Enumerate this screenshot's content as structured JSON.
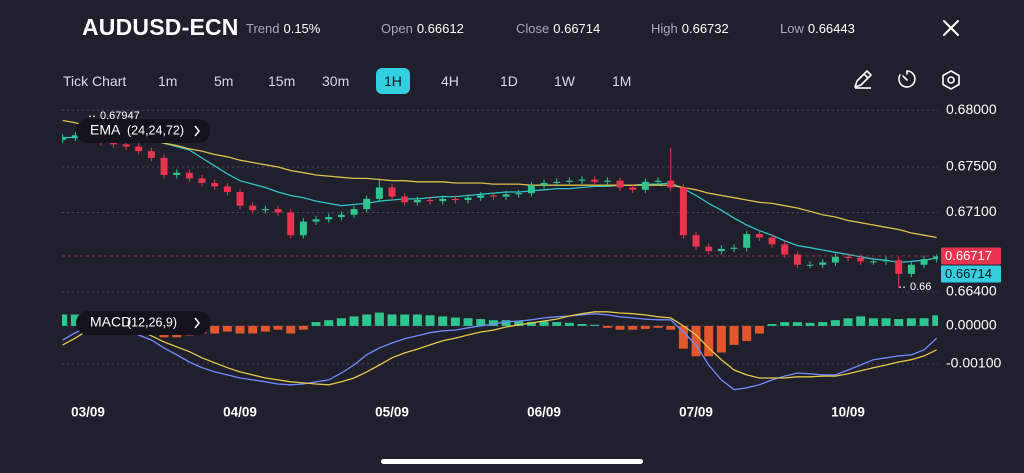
{
  "header": {
    "symbol": "AUDUSD-ECN",
    "stats": [
      {
        "label": "Trend",
        "value": "0.15%"
      },
      {
        "label": "Open",
        "value": 0.66612
      },
      {
        "label": "Close",
        "value": 0.66714
      },
      {
        "label": "High",
        "value": 0.66732
      },
      {
        "label": "Low",
        "value": 0.66443
      }
    ]
  },
  "toolbar": {
    "items": [
      "Tick Chart",
      "1m",
      "5m",
      "15m",
      "30m",
      "1H",
      "4H",
      "1D",
      "1W",
      "1M"
    ],
    "active_index": 5
  },
  "chart_data": [
    {
      "type": "candlestick",
      "legend_label": "EMA",
      "legend_params": "(24,24,72)",
      "ylim": [
        0.6633,
        0.6809
      ],
      "yticks": [
        {
          "value": 0.68,
          "label": "0.68000"
        },
        {
          "value": 0.675,
          "label": "0.67500"
        },
        {
          "value": 0.671,
          "label": "0.67100"
        },
        {
          "value": 0.664,
          "label": "0.66400"
        }
      ],
      "grid": true,
      "up_color": "#2fc58f",
      "down_color": "#e8344e",
      "open": [
        0.6774,
        0.6776,
        0.6778,
        0.6775,
        0.6772,
        0.677,
        0.6768,
        0.6764,
        0.6758,
        0.6743,
        0.6745,
        0.674,
        0.6736,
        0.6733,
        0.6728,
        0.6716,
        0.6712,
        0.6713,
        0.671,
        0.669,
        0.6702,
        0.6704,
        0.6706,
        0.6708,
        0.6713,
        0.6722,
        0.6732,
        0.6724,
        0.6719,
        0.6721,
        0.672,
        0.6722,
        0.6721,
        0.6723,
        0.6725,
        0.6724,
        0.6726,
        0.6727,
        0.6734,
        0.6736,
        0.6737,
        0.6738,
        0.6739,
        0.6737,
        0.6738,
        0.6732,
        0.673,
        0.6737,
        0.6738,
        0.6732,
        0.669,
        0.668,
        0.6676,
        0.6678,
        0.6679,
        0.6691,
        0.6688,
        0.6682,
        0.6673,
        0.6664,
        0.6664,
        0.6666,
        0.6671,
        0.667,
        0.6667,
        0.6667,
        0.6668,
        0.6656,
        0.6664,
        0.6669
      ],
      "high": [
        0.6779,
        0.6781,
        0.6781,
        0.6778,
        0.6775,
        0.6773,
        0.6771,
        0.6767,
        0.6761,
        0.6748,
        0.6748,
        0.6743,
        0.6739,
        0.6736,
        0.6731,
        0.6719,
        0.6716,
        0.6716,
        0.6713,
        0.6705,
        0.6707,
        0.6709,
        0.6711,
        0.6716,
        0.6725,
        0.674,
        0.6735,
        0.6727,
        0.6724,
        0.6724,
        0.6725,
        0.6725,
        0.6726,
        0.6728,
        0.6728,
        0.6729,
        0.673,
        0.6737,
        0.6739,
        0.674,
        0.6741,
        0.6742,
        0.6742,
        0.6741,
        0.6741,
        0.6735,
        0.674,
        0.6741,
        0.6767,
        0.6735,
        0.6693,
        0.6683,
        0.6681,
        0.6682,
        0.6694,
        0.6694,
        0.6691,
        0.6685,
        0.6676,
        0.6667,
        0.6669,
        0.6674,
        0.6674,
        0.6673,
        0.667,
        0.6671,
        0.6671,
        0.6667,
        0.6672,
        0.66732
      ],
      "low": [
        0.6771,
        0.6773,
        0.6772,
        0.6769,
        0.6767,
        0.6765,
        0.6761,
        0.6755,
        0.674,
        0.674,
        0.6737,
        0.6733,
        0.673,
        0.6725,
        0.6713,
        0.6709,
        0.6709,
        0.6707,
        0.6687,
        0.6687,
        0.6699,
        0.6701,
        0.6703,
        0.6705,
        0.671,
        0.6719,
        0.6721,
        0.6716,
        0.6716,
        0.6717,
        0.6717,
        0.6718,
        0.6718,
        0.672,
        0.6721,
        0.6721,
        0.6723,
        0.6724,
        0.6731,
        0.6733,
        0.6734,
        0.6735,
        0.6734,
        0.6734,
        0.6729,
        0.6727,
        0.6727,
        0.6734,
        0.6729,
        0.6687,
        0.6677,
        0.6673,
        0.6673,
        0.6675,
        0.6676,
        0.6685,
        0.6679,
        0.667,
        0.6661,
        0.6661,
        0.6661,
        0.6663,
        0.6667,
        0.6664,
        0.6664,
        0.6664,
        0.6644,
        0.6653,
        0.6661,
        0.6666
      ],
      "close": [
        0.6776,
        0.6778,
        0.6775,
        0.6772,
        0.677,
        0.6768,
        0.6764,
        0.6758,
        0.6743,
        0.6745,
        0.674,
        0.6736,
        0.6733,
        0.6728,
        0.6716,
        0.6712,
        0.6713,
        0.671,
        0.669,
        0.6702,
        0.6704,
        0.6706,
        0.6708,
        0.6713,
        0.6722,
        0.6732,
        0.6724,
        0.6719,
        0.6721,
        0.672,
        0.6722,
        0.6721,
        0.6723,
        0.6725,
        0.6724,
        0.6726,
        0.6727,
        0.6734,
        0.6736,
        0.6737,
        0.6738,
        0.6739,
        0.6737,
        0.6738,
        0.6732,
        0.673,
        0.6737,
        0.6738,
        0.6732,
        0.669,
        0.668,
        0.6676,
        0.6678,
        0.6679,
        0.6691,
        0.6688,
        0.6682,
        0.6673,
        0.6664,
        0.6664,
        0.6666,
        0.6671,
        0.667,
        0.6667,
        0.6667,
        0.6668,
        0.6656,
        0.6664,
        0.6669,
        0.66714
      ],
      "lines": [
        {
          "color": "#2ec3c8",
          "values": [
            0.6776,
            0.6776,
            0.6776,
            0.6775,
            0.6775,
            0.6775,
            0.6774,
            0.6774,
            0.6771,
            0.6768,
            0.6765,
            0.6758,
            0.6751,
            0.6744,
            0.6738,
            0.6735,
            0.6732,
            0.6728,
            0.6725,
            0.6723,
            0.672,
            0.6718,
            0.6716,
            0.6717,
            0.6718,
            0.672,
            0.6721,
            0.6722,
            0.6722,
            0.6723,
            0.6724,
            0.6724,
            0.6725,
            0.6726,
            0.6727,
            0.6728,
            0.6728,
            0.6729,
            0.673,
            0.6731,
            0.6731,
            0.6732,
            0.6733,
            0.6733,
            0.6734,
            0.6734,
            0.6735,
            0.6735,
            0.6736,
            0.6731,
            0.6725,
            0.6718,
            0.6712,
            0.6705,
            0.6699,
            0.6694,
            0.669,
            0.6685,
            0.6681,
            0.6679,
            0.6677,
            0.6675,
            0.6673,
            0.6671,
            0.6669,
            0.6668,
            0.6666,
            0.6667,
            0.6668,
            0.667
          ]
        },
        {
          "color": "#dcc04a",
          "values": [
            0.6791,
            0.6789,
            0.6786,
            0.6784,
            0.6781,
            0.6779,
            0.6776,
            0.6774,
            0.6771,
            0.6769,
            0.6766,
            0.6764,
            0.6761,
            0.6759,
            0.6756,
            0.6754,
            0.6752,
            0.675,
            0.6747,
            0.6745,
            0.6743,
            0.6742,
            0.6741,
            0.674,
            0.674,
            0.6739,
            0.6738,
            0.6738,
            0.6737,
            0.6737,
            0.6737,
            0.6736,
            0.6736,
            0.6736,
            0.6735,
            0.6735,
            0.6735,
            0.6734,
            0.6734,
            0.6734,
            0.6734,
            0.6734,
            0.6734,
            0.6734,
            0.6734,
            0.6734,
            0.6734,
            0.6734,
            0.6734,
            0.6732,
            0.673,
            0.6727,
            0.6725,
            0.6723,
            0.6721,
            0.6719,
            0.6718,
            0.6716,
            0.6714,
            0.6711,
            0.6708,
            0.6706,
            0.6703,
            0.6701,
            0.6699,
            0.6697,
            0.6695,
            0.6692,
            0.669,
            0.6688
          ]
        }
      ],
      "max_marker": {
        "value": 0.67947,
        "label": "0.67947"
      },
      "min_marker": {
        "value": 0.66443,
        "label": "0.66"
      },
      "price_labels": [
        {
          "value": 0.66717,
          "label": "0.66717",
          "color": "#e8344e"
        },
        {
          "value": 0.66714,
          "label": "0.66714",
          "color": "#33cfe0"
        }
      ]
    },
    {
      "type": "macd",
      "legend_label": "MACD",
      "legend_params": "(12,26,9)",
      "categories": [
        null,
        null,
        "03/09",
        null,
        null,
        null,
        null,
        null,
        null,
        null,
        null,
        null,
        null,
        null,
        "04/09",
        null,
        null,
        null,
        null,
        null,
        null,
        null,
        null,
        null,
        null,
        null,
        "05/09",
        null,
        null,
        null,
        null,
        null,
        null,
        null,
        null,
        null,
        null,
        null,
        "06/09",
        null,
        null,
        null,
        null,
        null,
        null,
        null,
        null,
        null,
        null,
        null,
        "07/09",
        null,
        null,
        null,
        null,
        null,
        null,
        null,
        null,
        null,
        null,
        null,
        "10/09",
        null,
        null,
        null,
        null,
        null,
        null,
        null
      ],
      "ylim": [
        -0.00195,
        0.00055
      ],
      "yticks": [
        {
          "value": 0,
          "label": "0.00000"
        },
        {
          "value": -0.001,
          "label": "-0.00100"
        }
      ],
      "grid": true,
      "histogram": {
        "up_color": "#2fc58f",
        "down_color": "#e2572b",
        "values": [
          0.0003,
          0.0003,
          0.0002,
          0.0002,
          0.0001,
          5e-05,
          -5e-05,
          -0.0001,
          -0.0003,
          -0.0003,
          -0.00025,
          -0.0002,
          -0.0002,
          -0.00015,
          -0.0002,
          -0.0002,
          -0.00015,
          -0.0001,
          -0.0002,
          -0.0001,
          0.0001,
          0.00015,
          0.0002,
          0.00025,
          0.0003,
          0.00035,
          0.0003,
          0.0003,
          0.0003,
          0.00028,
          0.00025,
          0.00022,
          0.0002,
          0.00018,
          0.00015,
          0.00015,
          0.00012,
          0.0001,
          0.00012,
          0.0001,
          8e-05,
          5e-05,
          3e-05,
          -5e-05,
          -0.0001,
          -0.0001,
          -8e-05,
          -5e-05,
          -0.0001,
          -0.0006,
          -0.0008,
          -0.0008,
          -0.0007,
          -0.0005,
          -0.0004,
          -0.0002,
          5e-05,
          0.0001,
          0.0001,
          8e-05,
          0.0001,
          0.00015,
          0.0002,
          0.00025,
          0.0002,
          0.0002,
          0.00018,
          0.0002,
          0.0002,
          0.00028
        ]
      },
      "lines": [
        {
          "color": "#6f8cff",
          "values": [
            -0.00037,
            -0.00018,
            -3e-05,
            3e-05,
            0,
            -0.0001,
            -0.00024,
            -0.00037,
            -0.00058,
            -0.00076,
            -0.00095,
            -0.0011,
            -0.00121,
            -0.00129,
            -0.00137,
            -0.00142,
            -0.00147,
            -0.00153,
            -0.00155,
            -0.00153,
            -0.00147,
            -0.00142,
            -0.00124,
            -0.00103,
            -0.00076,
            -0.00058,
            -0.00045,
            -0.00034,
            -0.00026,
            -0.00018,
            -0.00013,
            -0.00011,
            -5e-05,
            0,
            5e-05,
            0.00011,
            0.00013,
            0.00016,
            0.00021,
            0.00024,
            0.00026,
            0.00029,
            0.00032,
            0.00029,
            0.00024,
            0.00021,
            0.00018,
            0.00016,
            0.00016,
            -0.00016,
            -0.0005,
            -0.00103,
            -0.00142,
            -0.00168,
            -0.00163,
            -0.00155,
            -0.00142,
            -0.00132,
            -0.00124,
            -0.00126,
            -0.00129,
            -0.00129,
            -0.00116,
            -0.00103,
            -0.00089,
            -0.00084,
            -0.00079,
            -0.00076,
            -0.00063,
            -0.00032
          ]
        },
        {
          "color": "#e6c84a",
          "values": [
            -0.0005,
            -0.00032,
            -0.00011,
            3e-05,
            0.00011,
            3e-05,
            -0.00011,
            -0.00026,
            -0.00042,
            -0.00055,
            -0.00068,
            -0.00084,
            -0.00097,
            -0.0011,
            -0.00121,
            -0.00129,
            -0.00137,
            -0.00142,
            -0.00147,
            -0.0015,
            -0.00153,
            -0.00155,
            -0.00147,
            -0.00137,
            -0.00121,
            -0.00103,
            -0.00084,
            -0.00071,
            -0.00061,
            -0.0005,
            -0.00039,
            -0.00032,
            -0.00024,
            -0.00016,
            -0.00011,
            -3e-05,
            3e-05,
            8e-05,
            0.00013,
            0.00018,
            0.00026,
            0.00032,
            0.00037,
            0.00037,
            0.00034,
            0.00032,
            0.00029,
            0.00024,
            0.00021,
            0,
            -0.00024,
            -0.00058,
            -0.00089,
            -0.00116,
            -0.00129,
            -0.00137,
            -0.00137,
            -0.00137,
            -0.00134,
            -0.00134,
            -0.00132,
            -0.00132,
            -0.00126,
            -0.00118,
            -0.0011,
            -0.00103,
            -0.00095,
            -0.00089,
            -0.00079,
            -0.00063
          ]
        }
      ]
    }
  ]
}
